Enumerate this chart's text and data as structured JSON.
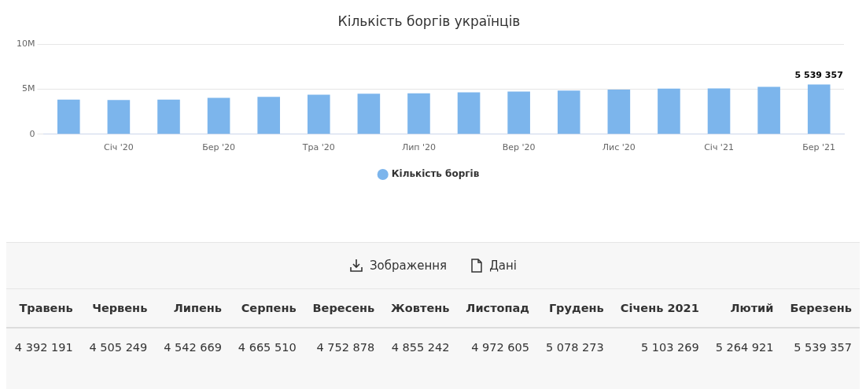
{
  "chart_data": [
    {
      "type": "bar",
      "title": "Кількість боргів українців",
      "categories": [
        null,
        "Січ '20",
        null,
        "Бер '20",
        null,
        "Тра '20",
        null,
        "Лип '20",
        null,
        "Вер '20",
        null,
        "Лис '20",
        null,
        "Січ '21",
        null,
        "Бер '21"
      ],
      "series": [
        {
          "name": "Кількість боргів",
          "color": "#7cb5ec",
          "values": [
            3850000,
            3800000,
            3850000,
            4050000,
            4150000,
            4392191,
            4505249,
            4542669,
            4665510,
            4752878,
            4855242,
            4972605,
            5078273,
            5103269,
            5264921,
            5539357
          ],
          "value_labels": [
            null,
            null,
            null,
            null,
            null,
            null,
            null,
            null,
            null,
            null,
            null,
            null,
            null,
            null,
            null,
            "5 539 357"
          ]
        }
      ],
      "ylim": [
        0,
        10000000
      ],
      "yticks": [
        0,
        {
          "value": 5000000,
          "label": "5M"
        },
        {
          "value": 10000000,
          "label": "10M"
        }
      ],
      "grid": "y",
      "legend": "bottom"
    },
    {
      "type": "other",
      "annotations": [
        "Зображення",
        "Дані"
      ],
      "categories": [
        "Травень",
        "Червень",
        "Липень",
        "Серпень",
        "Вересень",
        "Жовтень",
        "Листопад",
        "Грудень",
        "Січень 2021",
        "Лютий",
        "Березень"
      ],
      "value_labels": [
        "4 392 191",
        "4 505 249",
        "4 542 669",
        "4 665 510",
        "4 752 878",
        "4 855 242",
        "4 972 605",
        "5 078 273",
        "5 103 269",
        "5 264 921",
        "5 539 357"
      ]
    }
  ]
}
